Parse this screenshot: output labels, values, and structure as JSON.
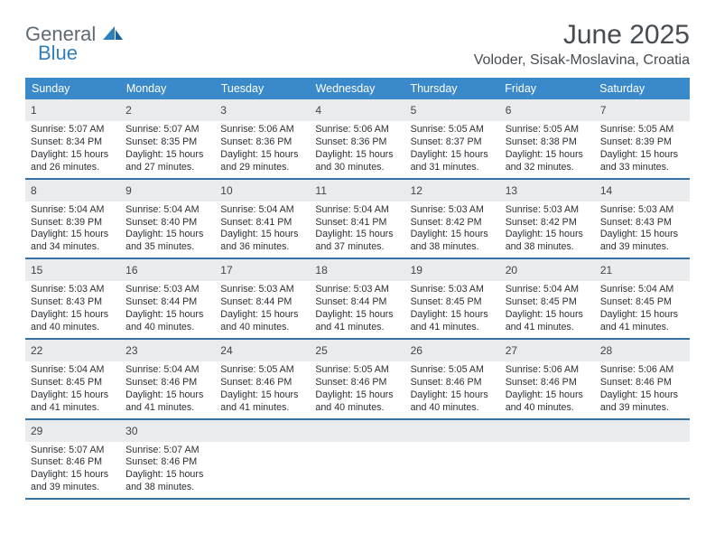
{
  "logo": {
    "word1": "General",
    "word2": "Blue"
  },
  "title": "June 2025",
  "location": "Voloder, Sisak-Moslavina, Croatia",
  "colors": {
    "header_bg": "#3a8acb",
    "header_text": "#ffffff",
    "week_divider": "#3573a6",
    "daynum_bg": "#e9ebec",
    "text": "#2b2f33",
    "title_text": "#464c52",
    "logo_gray": "#5f6a72",
    "logo_blue": "#2f7fbf"
  },
  "weekdays": [
    "Sunday",
    "Monday",
    "Tuesday",
    "Wednesday",
    "Thursday",
    "Friday",
    "Saturday"
  ],
  "weeks": [
    [
      {
        "n": "1",
        "sr": "5:07 AM",
        "ss": "8:34 PM",
        "dl": "15 hours and 26 minutes."
      },
      {
        "n": "2",
        "sr": "5:07 AM",
        "ss": "8:35 PM",
        "dl": "15 hours and 27 minutes."
      },
      {
        "n": "3",
        "sr": "5:06 AM",
        "ss": "8:36 PM",
        "dl": "15 hours and 29 minutes."
      },
      {
        "n": "4",
        "sr": "5:06 AM",
        "ss": "8:36 PM",
        "dl": "15 hours and 30 minutes."
      },
      {
        "n": "5",
        "sr": "5:05 AM",
        "ss": "8:37 PM",
        "dl": "15 hours and 31 minutes."
      },
      {
        "n": "6",
        "sr": "5:05 AM",
        "ss": "8:38 PM",
        "dl": "15 hours and 32 minutes."
      },
      {
        "n": "7",
        "sr": "5:05 AM",
        "ss": "8:39 PM",
        "dl": "15 hours and 33 minutes."
      }
    ],
    [
      {
        "n": "8",
        "sr": "5:04 AM",
        "ss": "8:39 PM",
        "dl": "15 hours and 34 minutes."
      },
      {
        "n": "9",
        "sr": "5:04 AM",
        "ss": "8:40 PM",
        "dl": "15 hours and 35 minutes."
      },
      {
        "n": "10",
        "sr": "5:04 AM",
        "ss": "8:41 PM",
        "dl": "15 hours and 36 minutes."
      },
      {
        "n": "11",
        "sr": "5:04 AM",
        "ss": "8:41 PM",
        "dl": "15 hours and 37 minutes."
      },
      {
        "n": "12",
        "sr": "5:03 AM",
        "ss": "8:42 PM",
        "dl": "15 hours and 38 minutes."
      },
      {
        "n": "13",
        "sr": "5:03 AM",
        "ss": "8:42 PM",
        "dl": "15 hours and 38 minutes."
      },
      {
        "n": "14",
        "sr": "5:03 AM",
        "ss": "8:43 PM",
        "dl": "15 hours and 39 minutes."
      }
    ],
    [
      {
        "n": "15",
        "sr": "5:03 AM",
        "ss": "8:43 PM",
        "dl": "15 hours and 40 minutes."
      },
      {
        "n": "16",
        "sr": "5:03 AM",
        "ss": "8:44 PM",
        "dl": "15 hours and 40 minutes."
      },
      {
        "n": "17",
        "sr": "5:03 AM",
        "ss": "8:44 PM",
        "dl": "15 hours and 40 minutes."
      },
      {
        "n": "18",
        "sr": "5:03 AM",
        "ss": "8:44 PM",
        "dl": "15 hours and 41 minutes."
      },
      {
        "n": "19",
        "sr": "5:03 AM",
        "ss": "8:45 PM",
        "dl": "15 hours and 41 minutes."
      },
      {
        "n": "20",
        "sr": "5:04 AM",
        "ss": "8:45 PM",
        "dl": "15 hours and 41 minutes."
      },
      {
        "n": "21",
        "sr": "5:04 AM",
        "ss": "8:45 PM",
        "dl": "15 hours and 41 minutes."
      }
    ],
    [
      {
        "n": "22",
        "sr": "5:04 AM",
        "ss": "8:45 PM",
        "dl": "15 hours and 41 minutes."
      },
      {
        "n": "23",
        "sr": "5:04 AM",
        "ss": "8:46 PM",
        "dl": "15 hours and 41 minutes."
      },
      {
        "n": "24",
        "sr": "5:05 AM",
        "ss": "8:46 PM",
        "dl": "15 hours and 41 minutes."
      },
      {
        "n": "25",
        "sr": "5:05 AM",
        "ss": "8:46 PM",
        "dl": "15 hours and 40 minutes."
      },
      {
        "n": "26",
        "sr": "5:05 AM",
        "ss": "8:46 PM",
        "dl": "15 hours and 40 minutes."
      },
      {
        "n": "27",
        "sr": "5:06 AM",
        "ss": "8:46 PM",
        "dl": "15 hours and 40 minutes."
      },
      {
        "n": "28",
        "sr": "5:06 AM",
        "ss": "8:46 PM",
        "dl": "15 hours and 39 minutes."
      }
    ],
    [
      {
        "n": "29",
        "sr": "5:07 AM",
        "ss": "8:46 PM",
        "dl": "15 hours and 39 minutes."
      },
      {
        "n": "30",
        "sr": "5:07 AM",
        "ss": "8:46 PM",
        "dl": "15 hours and 38 minutes."
      },
      {
        "empty": true
      },
      {
        "empty": true
      },
      {
        "empty": true
      },
      {
        "empty": true
      },
      {
        "empty": true
      }
    ]
  ],
  "labels": {
    "sunrise": "Sunrise:",
    "sunset": "Sunset:",
    "daylight": "Daylight:"
  }
}
